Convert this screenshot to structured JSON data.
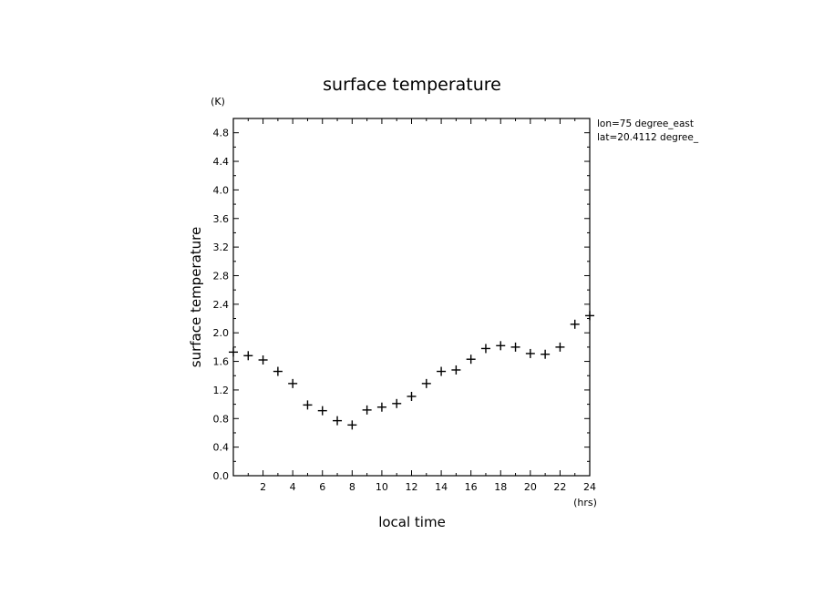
{
  "chart_data": {
    "type": "scatter",
    "title": "surface temperature",
    "xlabel": "local time",
    "ylabel": "surface temperature",
    "x_unit": "(hrs)",
    "y_unit": "(K)",
    "xlim": [
      0,
      24
    ],
    "ylim": [
      0,
      5.0
    ],
    "x_ticks": [
      2,
      4,
      6,
      8,
      10,
      12,
      14,
      16,
      18,
      20,
      22,
      24
    ],
    "y_ticks": [
      0.0,
      0.4,
      0.8,
      1.2,
      1.6,
      2.0,
      2.4,
      2.8,
      3.2,
      3.6,
      4.0,
      4.4,
      4.8
    ],
    "y_tick_labels": [
      "0.0",
      "0.4",
      "0.8",
      "1.2",
      "1.6",
      "2.0",
      "2.4",
      "2.8",
      "3.2",
      "3.6",
      "4.0",
      "4.4",
      "4.8"
    ],
    "grid": false,
    "marker": "+",
    "annotations": [
      "lon=75 degree_east",
      "lat=20.4112 degree_"
    ],
    "series": [
      {
        "x": [
          0,
          1,
          2,
          3,
          4,
          5,
          6,
          7,
          8,
          9,
          10,
          11,
          12,
          13,
          14,
          15,
          16,
          17,
          18,
          19,
          20,
          21,
          22,
          23,
          24
        ],
        "values": [
          1.73,
          1.68,
          1.62,
          1.46,
          1.29,
          0.99,
          0.91,
          0.77,
          0.71,
          0.92,
          0.96,
          1.01,
          1.11,
          1.29,
          1.46,
          1.48,
          1.63,
          1.78,
          1.82,
          1.8,
          1.71,
          1.7,
          1.8,
          2.12,
          2.24
        ]
      }
    ]
  }
}
